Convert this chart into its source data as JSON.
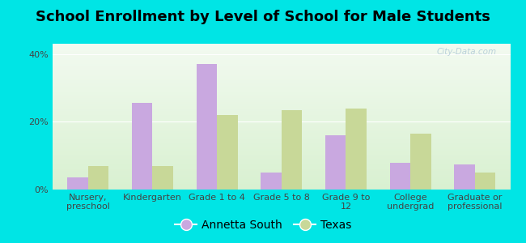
{
  "title": "School Enrollment by Level of School for Male Students",
  "categories": [
    "Nursery,\npreschool",
    "Kindergarten",
    "Grade 1 to 4",
    "Grade 5 to 8",
    "Grade 9 to\n12",
    "College\nundergrad",
    "Graduate or\nprofessional"
  ],
  "annetta_south": [
    3.5,
    25.5,
    37.0,
    5.0,
    16.0,
    8.0,
    7.5
  ],
  "texas": [
    7.0,
    7.0,
    22.0,
    23.5,
    24.0,
    16.5,
    5.0
  ],
  "annetta_color": "#c9a8e0",
  "texas_color": "#c8d898",
  "background_outer": "#00e5e5",
  "gradient_top": "#f2faf0",
  "gradient_bottom": "#d8f0d0",
  "ylabel_ticks": [
    "0%",
    "20%",
    "40%"
  ],
  "yticks": [
    0,
    20,
    40
  ],
  "ylim": [
    0,
    43
  ],
  "bar_width": 0.32,
  "legend_labels": [
    "Annetta South",
    "Texas"
  ],
  "title_fontsize": 13,
  "tick_fontsize": 8,
  "legend_fontsize": 10,
  "watermark": "City-Data.com"
}
